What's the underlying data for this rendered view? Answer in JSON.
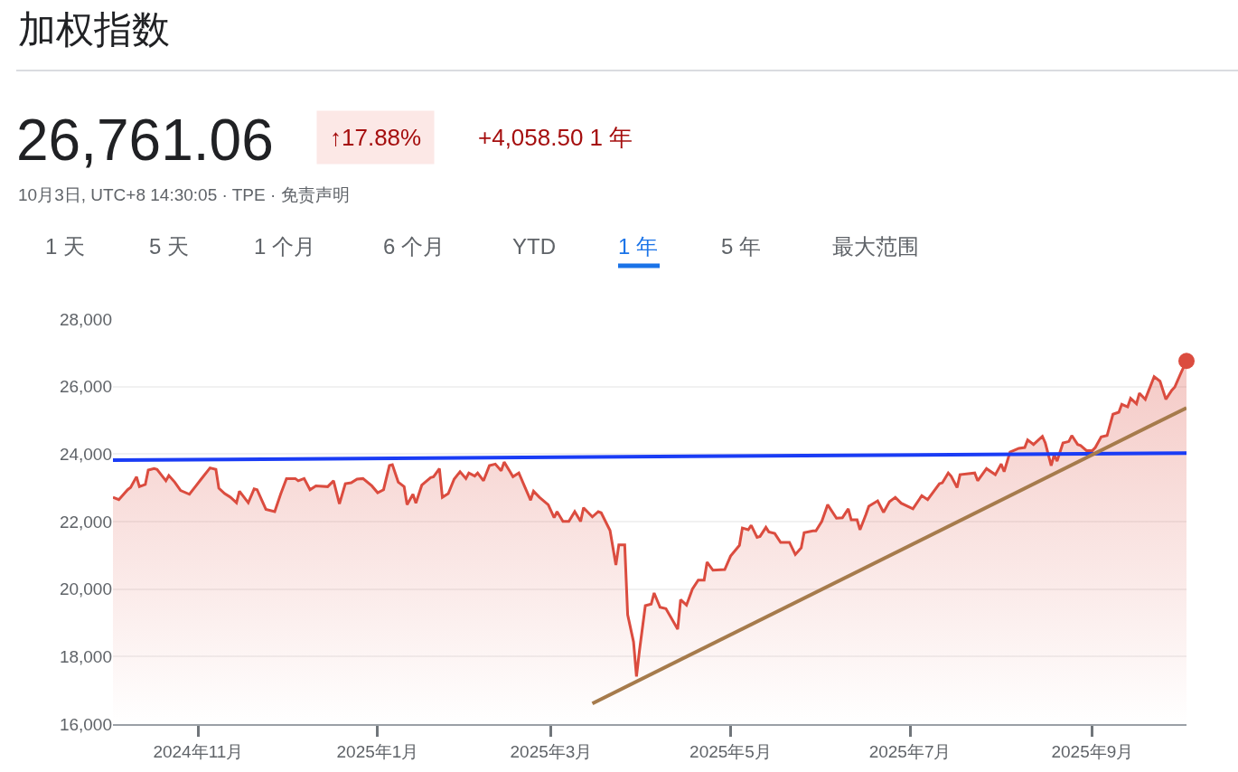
{
  "chart_data": {
    "type": "area",
    "title": "加权指数",
    "subtitle": "26,761.06",
    "annotations": [
      "↑17.88%",
      "+4,058.50 1 年",
      "10月3日, UTC+8 14:30:05 · TPE · 免责声明",
      "1 天",
      "5 天",
      "1 个月",
      "6 个月",
      "YTD",
      "1 年",
      "5 年",
      "最大范围"
    ],
    "x": [
      "2024-10-03",
      "2024-10-05",
      "2024-10-08",
      "2024-10-09",
      "2024-10-11",
      "2024-10-12",
      "2024-10-14",
      "2024-10-15",
      "2024-10-17",
      "2024-10-18",
      "2024-10-21",
      "2024-10-22",
      "2024-10-24",
      "2024-10-26",
      "2024-10-29",
      "2024-10-31",
      "2024-11-02",
      "2024-11-05",
      "2024-11-07",
      "2024-11-08",
      "2024-11-10",
      "2024-11-12",
      "2024-11-14",
      "2024-11-15",
      "2024-11-18",
      "2024-11-20",
      "2024-11-21",
      "2024-11-24",
      "2024-11-27",
      "2024-11-29",
      "2024-12-01",
      "2024-12-04",
      "2024-12-05",
      "2024-12-07",
      "2024-12-09",
      "2024-12-11",
      "2024-12-15",
      "2024-12-17",
      "2024-12-19",
      "2024-12-21",
      "2024-12-23",
      "2024-12-25",
      "2024-12-27",
      "2024-12-30",
      "2025-01-01",
      "2025-01-03",
      "2025-01-05",
      "2025-01-06",
      "2025-01-08",
      "2025-01-10",
      "2025-01-11",
      "2025-01-13",
      "2025-01-14",
      "2025-01-16",
      "2025-01-19",
      "2025-01-20",
      "2025-01-22",
      "2025-01-23",
      "2025-01-25",
      "2025-01-27",
      "2025-01-29",
      "2025-01-31",
      "2025-02-01",
      "2025-02-03",
      "2025-02-04",
      "2025-02-06",
      "2025-02-08",
      "2025-02-10",
      "2025-02-12",
      "2025-02-13",
      "2025-02-15",
      "2025-02-16",
      "2025-02-18",
      "2025-02-20",
      "2025-02-22",
      "2025-02-23",
      "2025-02-25",
      "2025-02-28",
      "2025-03-02",
      "2025-03-03",
      "2025-03-05",
      "2025-03-07",
      "2025-03-09",
      "2025-03-11",
      "2025-03-12",
      "2025-03-15",
      "2025-03-17",
      "2025-03-18",
      "2025-03-21",
      "2025-03-23",
      "2025-03-24",
      "2025-03-26",
      "2025-03-27",
      "2025-03-29",
      "2025-03-30",
      "2025-03-31",
      "2025-04-02",
      "2025-04-04",
      "2025-04-05",
      "2025-04-07",
      "2025-04-09",
      "2025-04-13",
      "2025-04-14",
      "2025-04-16",
      "2025-04-18",
      "2025-04-20",
      "2025-04-22",
      "2025-04-23",
      "2025-04-25",
      "2025-04-29",
      "2025-05-01",
      "2025-05-04",
      "2025-05-05",
      "2025-05-07",
      "2025-05-08",
      "2025-05-10",
      "2025-05-11",
      "2025-05-13",
      "2025-05-14",
      "2025-05-16",
      "2025-05-18",
      "2025-05-21",
      "2025-05-23",
      "2025-05-25",
      "2025-05-26",
      "2025-05-29",
      "2025-05-30",
      "2025-06-01",
      "2025-06-03",
      "2025-06-06",
      "2025-06-08",
      "2025-06-10",
      "2025-06-11",
      "2025-06-13",
      "2025-06-14",
      "2025-06-16",
      "2025-06-17",
      "2025-06-20",
      "2025-06-22",
      "2025-06-24",
      "2025-06-26",
      "2025-06-28",
      "2025-07-02",
      "2025-07-05",
      "2025-07-07",
      "2025-07-11",
      "2025-07-12",
      "2025-07-14",
      "2025-07-15",
      "2025-07-17",
      "2025-07-18",
      "2025-07-23",
      "2025-07-24",
      "2025-07-27",
      "2025-07-30",
      "2025-08-01",
      "2025-08-02",
      "2025-08-04",
      "2025-08-07",
      "2025-08-09",
      "2025-08-10",
      "2025-08-12",
      "2025-08-15",
      "2025-08-16",
      "2025-08-18",
      "2025-08-19",
      "2025-08-20",
      "2025-08-22",
      "2025-08-24",
      "2025-08-25",
      "2025-08-27",
      "2025-08-28",
      "2025-08-30",
      "2025-09-01",
      "2025-09-02",
      "2025-09-04",
      "2025-09-06",
      "2025-09-08",
      "2025-09-10",
      "2025-09-11",
      "2025-09-13",
      "2025-09-14",
      "2025-09-16",
      "2025-09-17",
      "2025-09-19",
      "2025-09-22",
      "2025-09-24",
      "2025-09-25",
      "2025-09-26",
      "2025-09-28",
      "2025-09-29",
      "2025-10-01",
      "2025-10-03"
    ],
    "series": [
      {
        "color": "#db4c3f",
        "values": [
          22720,
          22650,
          22945,
          23010,
          23330,
          23035,
          23100,
          23525,
          23570,
          23545,
          23210,
          23365,
          23170,
          22920,
          22810,
          23035,
          23260,
          23590,
          23545,
          22990,
          22830,
          22720,
          22560,
          22900,
          22560,
          22970,
          22945,
          22365,
          22295,
          22810,
          23275,
          23275,
          23210,
          23275,
          22945,
          23060,
          23035,
          23210,
          22525,
          23125,
          23150,
          23260,
          23275,
          23060,
          22855,
          22945,
          23660,
          23685,
          23170,
          23035,
          22500,
          22810,
          22545,
          23080,
          23305,
          23330,
          23570,
          22720,
          22830,
          23260,
          23480,
          23275,
          23440,
          23350,
          23440,
          23210,
          23660,
          23705,
          23505,
          23765,
          23480,
          23330,
          23440,
          23035,
          22635,
          22900,
          22720,
          22500,
          22115,
          22295,
          22005,
          22005,
          22295,
          22005,
          22410,
          22140,
          22295,
          22260,
          21740,
          20715,
          21310,
          21310,
          19240,
          18435,
          17410,
          18170,
          19510,
          19555,
          19885,
          19460,
          19420,
          18810,
          19685,
          19525,
          20000,
          20265,
          20265,
          20800,
          20560,
          20580,
          20980,
          21295,
          21810,
          21760,
          21890,
          21535,
          21560,
          21830,
          21695,
          21650,
          21385,
          21385,
          21025,
          21220,
          21670,
          21725,
          21725,
          22005,
          22500,
          22100,
          22115,
          22380,
          22055,
          22055,
          21760,
          22205,
          22455,
          22615,
          22275,
          22590,
          22720,
          22545,
          22380,
          22770,
          22650,
          23125,
          23150,
          23440,
          23345,
          23010,
          23390,
          23440,
          23210,
          23570,
          23390,
          23705,
          23480,
          24060,
          24170,
          24195,
          24420,
          24285,
          24525,
          24330,
          23660,
          23975,
          23795,
          24330,
          24375,
          24550,
          24285,
          24255,
          24105,
          24105,
          24195,
          24510,
          24550,
          25180,
          25240,
          25475,
          25400,
          25650,
          25490,
          25805,
          25625,
          26295,
          26160,
          25890,
          25625,
          25890,
          25985,
          26385,
          26761
        ]
      },
      {
        "type": "line",
        "color": "#1a3cf5",
        "x": [
          "2024-10-03",
          "2025-10-03"
        ],
        "values": [
          23820,
          24030
        ]
      },
      {
        "type": "line",
        "color": "#a67b4c",
        "x": [
          "2025-03-15",
          "2025-10-03"
        ],
        "values": [
          16610,
          25370
        ]
      },
      {
        "type": "scatter",
        "color": "#db4c3f",
        "marker": "circle",
        "x": [
          "2025-10-03"
        ],
        "values": [
          26761
        ]
      }
    ],
    "xlim": [
      "2024-10-03",
      "2025-10-03"
    ],
    "xticks": [
      {
        "value": "2024-11-01",
        "label": "2024年11月"
      },
      {
        "value": "2025-01-01",
        "label": "2025年1月"
      },
      {
        "value": "2025-03-01",
        "label": "2025年3月"
      },
      {
        "value": "2025-05-01",
        "label": "2025年5月"
      },
      {
        "value": "2025-07-01",
        "label": "2025年7月"
      },
      {
        "value": "2025-09-01",
        "label": "2025年9月"
      }
    ],
    "ylim": [
      16000,
      28000
    ],
    "yticks": [
      {
        "value": 16000,
        "label": "16,000"
      },
      {
        "value": 18000,
        "label": "18,000"
      },
      {
        "value": 20000,
        "label": "20,000"
      },
      {
        "value": 22000,
        "label": "22,000"
      },
      {
        "value": 24000,
        "label": "24,000"
      },
      {
        "value": 26000,
        "label": "26,000"
      },
      {
        "value": 28000,
        "label": "28,000"
      }
    ],
    "grid": "y"
  }
}
